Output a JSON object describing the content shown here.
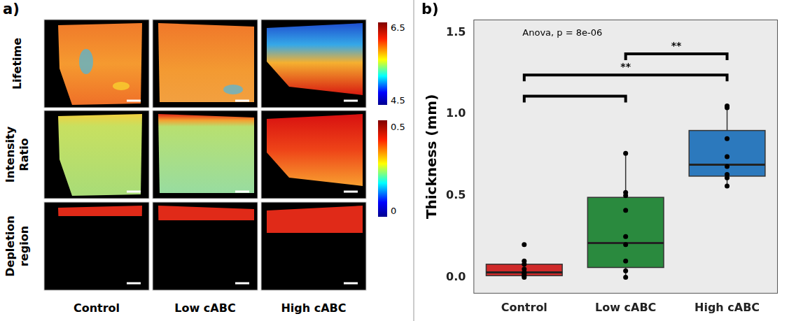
{
  "panel_a": {
    "panel_label": "a)",
    "row_labels": [
      "Lifetime",
      "Intensity Ratio",
      "Depletion region"
    ],
    "column_labels": [
      "Control",
      "Low cABC",
      "High cABC"
    ],
    "colorbars": [
      {
        "range": [
          4.5,
          6.5
        ]
      },
      {
        "range": [
          0,
          0.5
        ]
      }
    ]
  },
  "chart_data": {
    "type": "boxplot",
    "panel_label": "b)",
    "annotation": "Anova, p = 8e-06",
    "y_label": "Thickness (mm)",
    "categories": [
      "Control",
      "Low cABC",
      "High cABC"
    ],
    "colors": [
      "#d02a2a",
      "#2a8a3e",
      "#2c79bd"
    ],
    "boxes": [
      {
        "whisker_low": 0.0,
        "q1": 0.01,
        "median": 0.03,
        "q3": 0.08,
        "whisker_high": 0.1
      },
      {
        "whisker_low": 0.0,
        "q1": 0.06,
        "median": 0.21,
        "q3": 0.49,
        "whisker_high": 0.76
      },
      {
        "whisker_low": 0.56,
        "q1": 0.62,
        "median": 0.69,
        "q3": 0.9,
        "whisker_high": 1.05
      }
    ],
    "points": [
      [
        0.2,
        0.1,
        0.08,
        0.05,
        0.03,
        0.02,
        0.01,
        0.0
      ],
      [
        0.76,
        0.52,
        0.5,
        0.41,
        0.25,
        0.2,
        0.1,
        0.04,
        0.0
      ],
      [
        1.05,
        1.04,
        0.85,
        0.74,
        0.68,
        0.63,
        0.61,
        0.56
      ]
    ],
    "brackets": [
      {
        "from": "Control",
        "to": "Low cABC",
        "y": 1.11
      },
      {
        "from": "Control",
        "to": "High cABC",
        "y": 1.24,
        "label": "**"
      },
      {
        "from": "Low cABC",
        "to": "High cABC",
        "y": 1.37,
        "label": "**"
      }
    ],
    "ylim": [
      -0.1,
      1.58
    ],
    "yticks": [
      {
        "value": 0,
        "label": "0.0"
      },
      {
        "value": 0.5,
        "label": "0.5"
      },
      {
        "value": 1,
        "label": "1.0"
      },
      {
        "value": 1.5,
        "label": "1.5"
      }
    ],
    "grid": false
  }
}
